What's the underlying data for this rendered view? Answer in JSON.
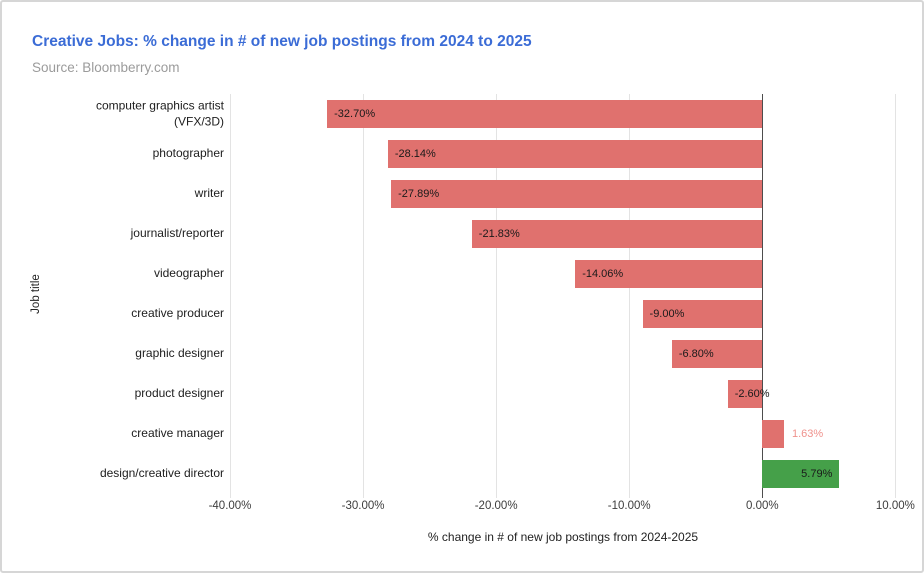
{
  "chart_data": {
    "type": "bar",
    "orientation": "horizontal",
    "title": "Creative Jobs: % change in # of new job postings from 2024 to 2025",
    "source": "Source: Bloomberry.com",
    "xlabel": "% change in # of new job postings from 2024-2025",
    "ylabel": "Job title",
    "categories": [
      "computer graphics artist (VFX/3D)",
      "photographer",
      "writer",
      "journalist/reporter",
      "videographer",
      "creative producer",
      "graphic designer",
      "product designer",
      "creative manager",
      "design/creative director"
    ],
    "values": [
      -32.7,
      -28.14,
      -27.89,
      -21.83,
      -14.06,
      -9.0,
      -6.8,
      -2.6,
      1.63,
      5.79
    ],
    "value_labels": [
      "-32.70%",
      "-28.14%",
      "-27.89%",
      "-21.83%",
      "-14.06%",
      "-9.00%",
      "-6.80%",
      "-2.60%",
      "1.63%",
      "5.79%"
    ],
    "bar_colors": [
      "#e0716e",
      "#e0716e",
      "#e0716e",
      "#e0716e",
      "#e0716e",
      "#e0716e",
      "#e0716e",
      "#e0716e",
      "#e0716e",
      "#45a049"
    ],
    "label_inside": [
      true,
      true,
      true,
      true,
      true,
      true,
      true,
      true,
      false,
      true
    ],
    "x_ticks": [
      {
        "value": -40,
        "label": "-40.00%"
      },
      {
        "value": -30,
        "label": "-30.00%"
      },
      {
        "value": -20,
        "label": "-20.00%"
      },
      {
        "value": -10,
        "label": "-10.00%"
      },
      {
        "value": 0,
        "label": "0.00%"
      },
      {
        "value": 10,
        "label": "10.00%"
      }
    ],
    "xlim": [
      -40,
      12
    ],
    "grid": true,
    "legend": "none",
    "colors": {
      "negative_bar": "#e0716e",
      "positive_bar": "#45a049",
      "outside_label_text": "#ef918c",
      "zero_axis": "#4d4d4d",
      "gridline": "#e3e3e3",
      "title_text": "#3b6cd6",
      "source_text": "#9b9b9b"
    }
  }
}
